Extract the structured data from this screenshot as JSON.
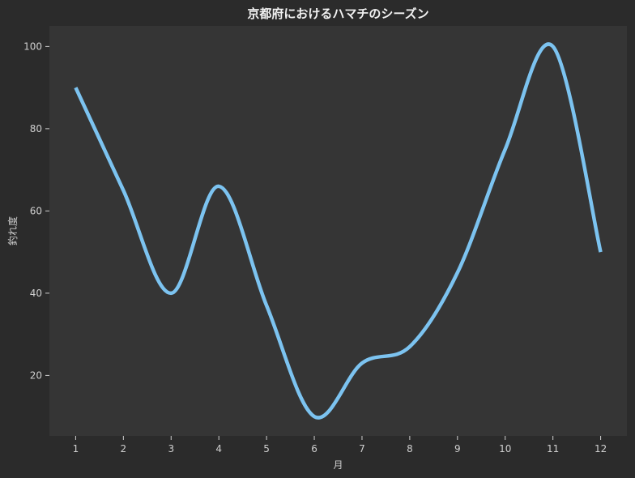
{
  "chart_data": {
    "type": "line",
    "title": "京都府におけるハマチのシーズン",
    "xlabel": "月",
    "ylabel": "釣れ度",
    "x": [
      1,
      2,
      3,
      4,
      5,
      6,
      7,
      8,
      9,
      10,
      11,
      12
    ],
    "series": [
      {
        "values": [
          90,
          65,
          40,
          66,
          37,
          10,
          23,
          27,
          45,
          75,
          100,
          50
        ]
      }
    ],
    "xticks": [
      1,
      2,
      3,
      4,
      5,
      6,
      7,
      8,
      9,
      10,
      11,
      12
    ],
    "yticks": [
      20,
      40,
      60,
      80,
      100
    ],
    "xlim": [
      0.45,
      12.55
    ],
    "ylim": [
      5.3,
      105
    ],
    "grid": false,
    "colors": {
      "figure_background": "#2b2b2b",
      "plot_background": "#353535",
      "line": "#7cc3f0",
      "text": "#cfcfcf",
      "title": "#f2f2f2"
    }
  }
}
